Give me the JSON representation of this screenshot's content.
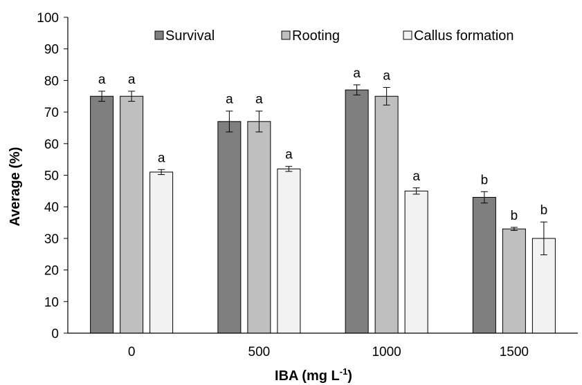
{
  "chart_data": {
    "type": "bar",
    "title": "",
    "xlabel": "IBA (mg L",
    "xlabel_sup": "-1",
    "xlabel_tail": ")",
    "ylabel": "Average (%)",
    "categories": [
      "0",
      "500",
      "1000",
      "1500"
    ],
    "ylim": [
      0,
      100
    ],
    "yticks": [
      0,
      10,
      20,
      30,
      40,
      50,
      60,
      70,
      80,
      90,
      100
    ],
    "grid": false,
    "legend_position": "top",
    "series": [
      {
        "name": "Survival",
        "color": "#7f7f7f",
        "values": [
          75,
          67,
          77,
          43
        ],
        "errors": [
          1.6,
          3.3,
          1.6,
          1.8
        ],
        "labels": [
          "a",
          "a",
          "a",
          "b"
        ]
      },
      {
        "name": "Rooting",
        "color": "#bfbfbf",
        "values": [
          75,
          67,
          75,
          33
        ],
        "errors": [
          1.6,
          3.3,
          2.8,
          0.5
        ],
        "labels": [
          "a",
          "a",
          "a",
          "b"
        ]
      },
      {
        "name": "Callus formation",
        "color": "#f2f2f2",
        "values": [
          51,
          52,
          45,
          30
        ],
        "errors": [
          0.8,
          0.8,
          1.0,
          5.2
        ],
        "labels": [
          "a",
          "a",
          "a",
          "b"
        ]
      }
    ]
  }
}
